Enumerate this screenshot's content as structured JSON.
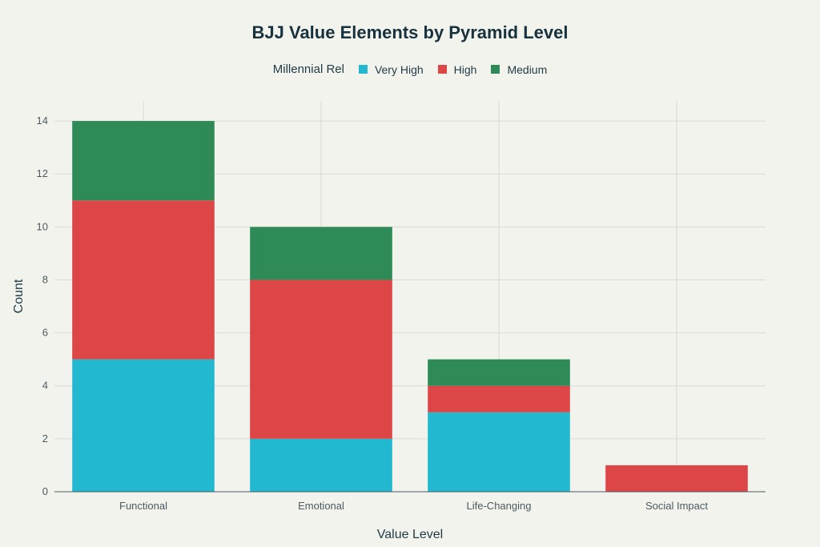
{
  "chart_data": {
    "type": "bar",
    "stacked": true,
    "title": "BJJ Value Elements by Pyramid Level",
    "xlabel": "Value Level",
    "ylabel": "Count",
    "categories": [
      "Functional",
      "Emotional",
      "Life-Changing",
      "Social Impact"
    ],
    "legend_title": "Millennial Rel",
    "legend_position": "top-center",
    "series": [
      {
        "name": "Very High",
        "color": "#22b8cf",
        "values": [
          5,
          2,
          3,
          0
        ]
      },
      {
        "name": "High",
        "color": "#dd4646",
        "values": [
          6,
          6,
          1,
          1
        ]
      },
      {
        "name": "Medium",
        "color": "#2e8b57",
        "values": [
          3,
          2,
          1,
          0
        ]
      }
    ],
    "ylim": [
      0,
      15
    ],
    "yticks": [
      0,
      2,
      4,
      6,
      8,
      10,
      12,
      14
    ],
    "grid": true
  }
}
